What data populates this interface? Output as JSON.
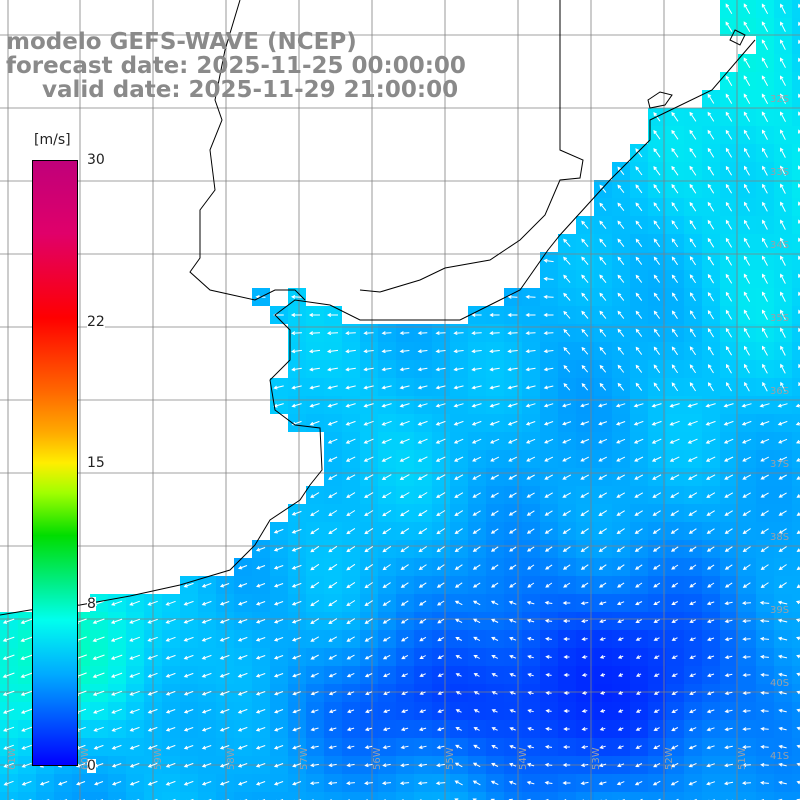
{
  "title": {
    "line1": "modelo GEFS-WAVE (NCEP)",
    "line2": "forecast date: 2025-11-25 00:00:00",
    "line3": "valid date: 2025-11-29 21:00:00"
  },
  "colorbar": {
    "unit": "[m/s]",
    "ticks": [
      {
        "label": "30",
        "value": 30
      },
      {
        "label": "22",
        "value": 22
      },
      {
        "label": "15",
        "value": 15
      },
      {
        "label": "8",
        "value": 8
      },
      {
        "label": "0",
        "value": 0
      }
    ],
    "range": [
      0,
      30
    ]
  },
  "grid_labels": {
    "latitudes": [
      "32S",
      "33S",
      "34S",
      "35S",
      "36S",
      "37S",
      "38S",
      "39S",
      "40S",
      "41S"
    ],
    "longitudes": [
      "61W",
      "60W",
      "59W",
      "58W",
      "57W",
      "56W",
      "55W",
      "54W",
      "53W",
      "52W",
      "51W"
    ]
  },
  "colors": {
    "land": "#ffffff",
    "coast": "#000000",
    "grid": "#808080",
    "title": "#8a8a8a",
    "arrow": "#ffffff"
  },
  "wind_field": {
    "quantity": "wind speed",
    "units": "m/s",
    "description_levels": {
      "coastal_southwest": 10,
      "northeast_offshore": 8,
      "central_offshore": 6,
      "southeast_low": 3
    }
  }
}
